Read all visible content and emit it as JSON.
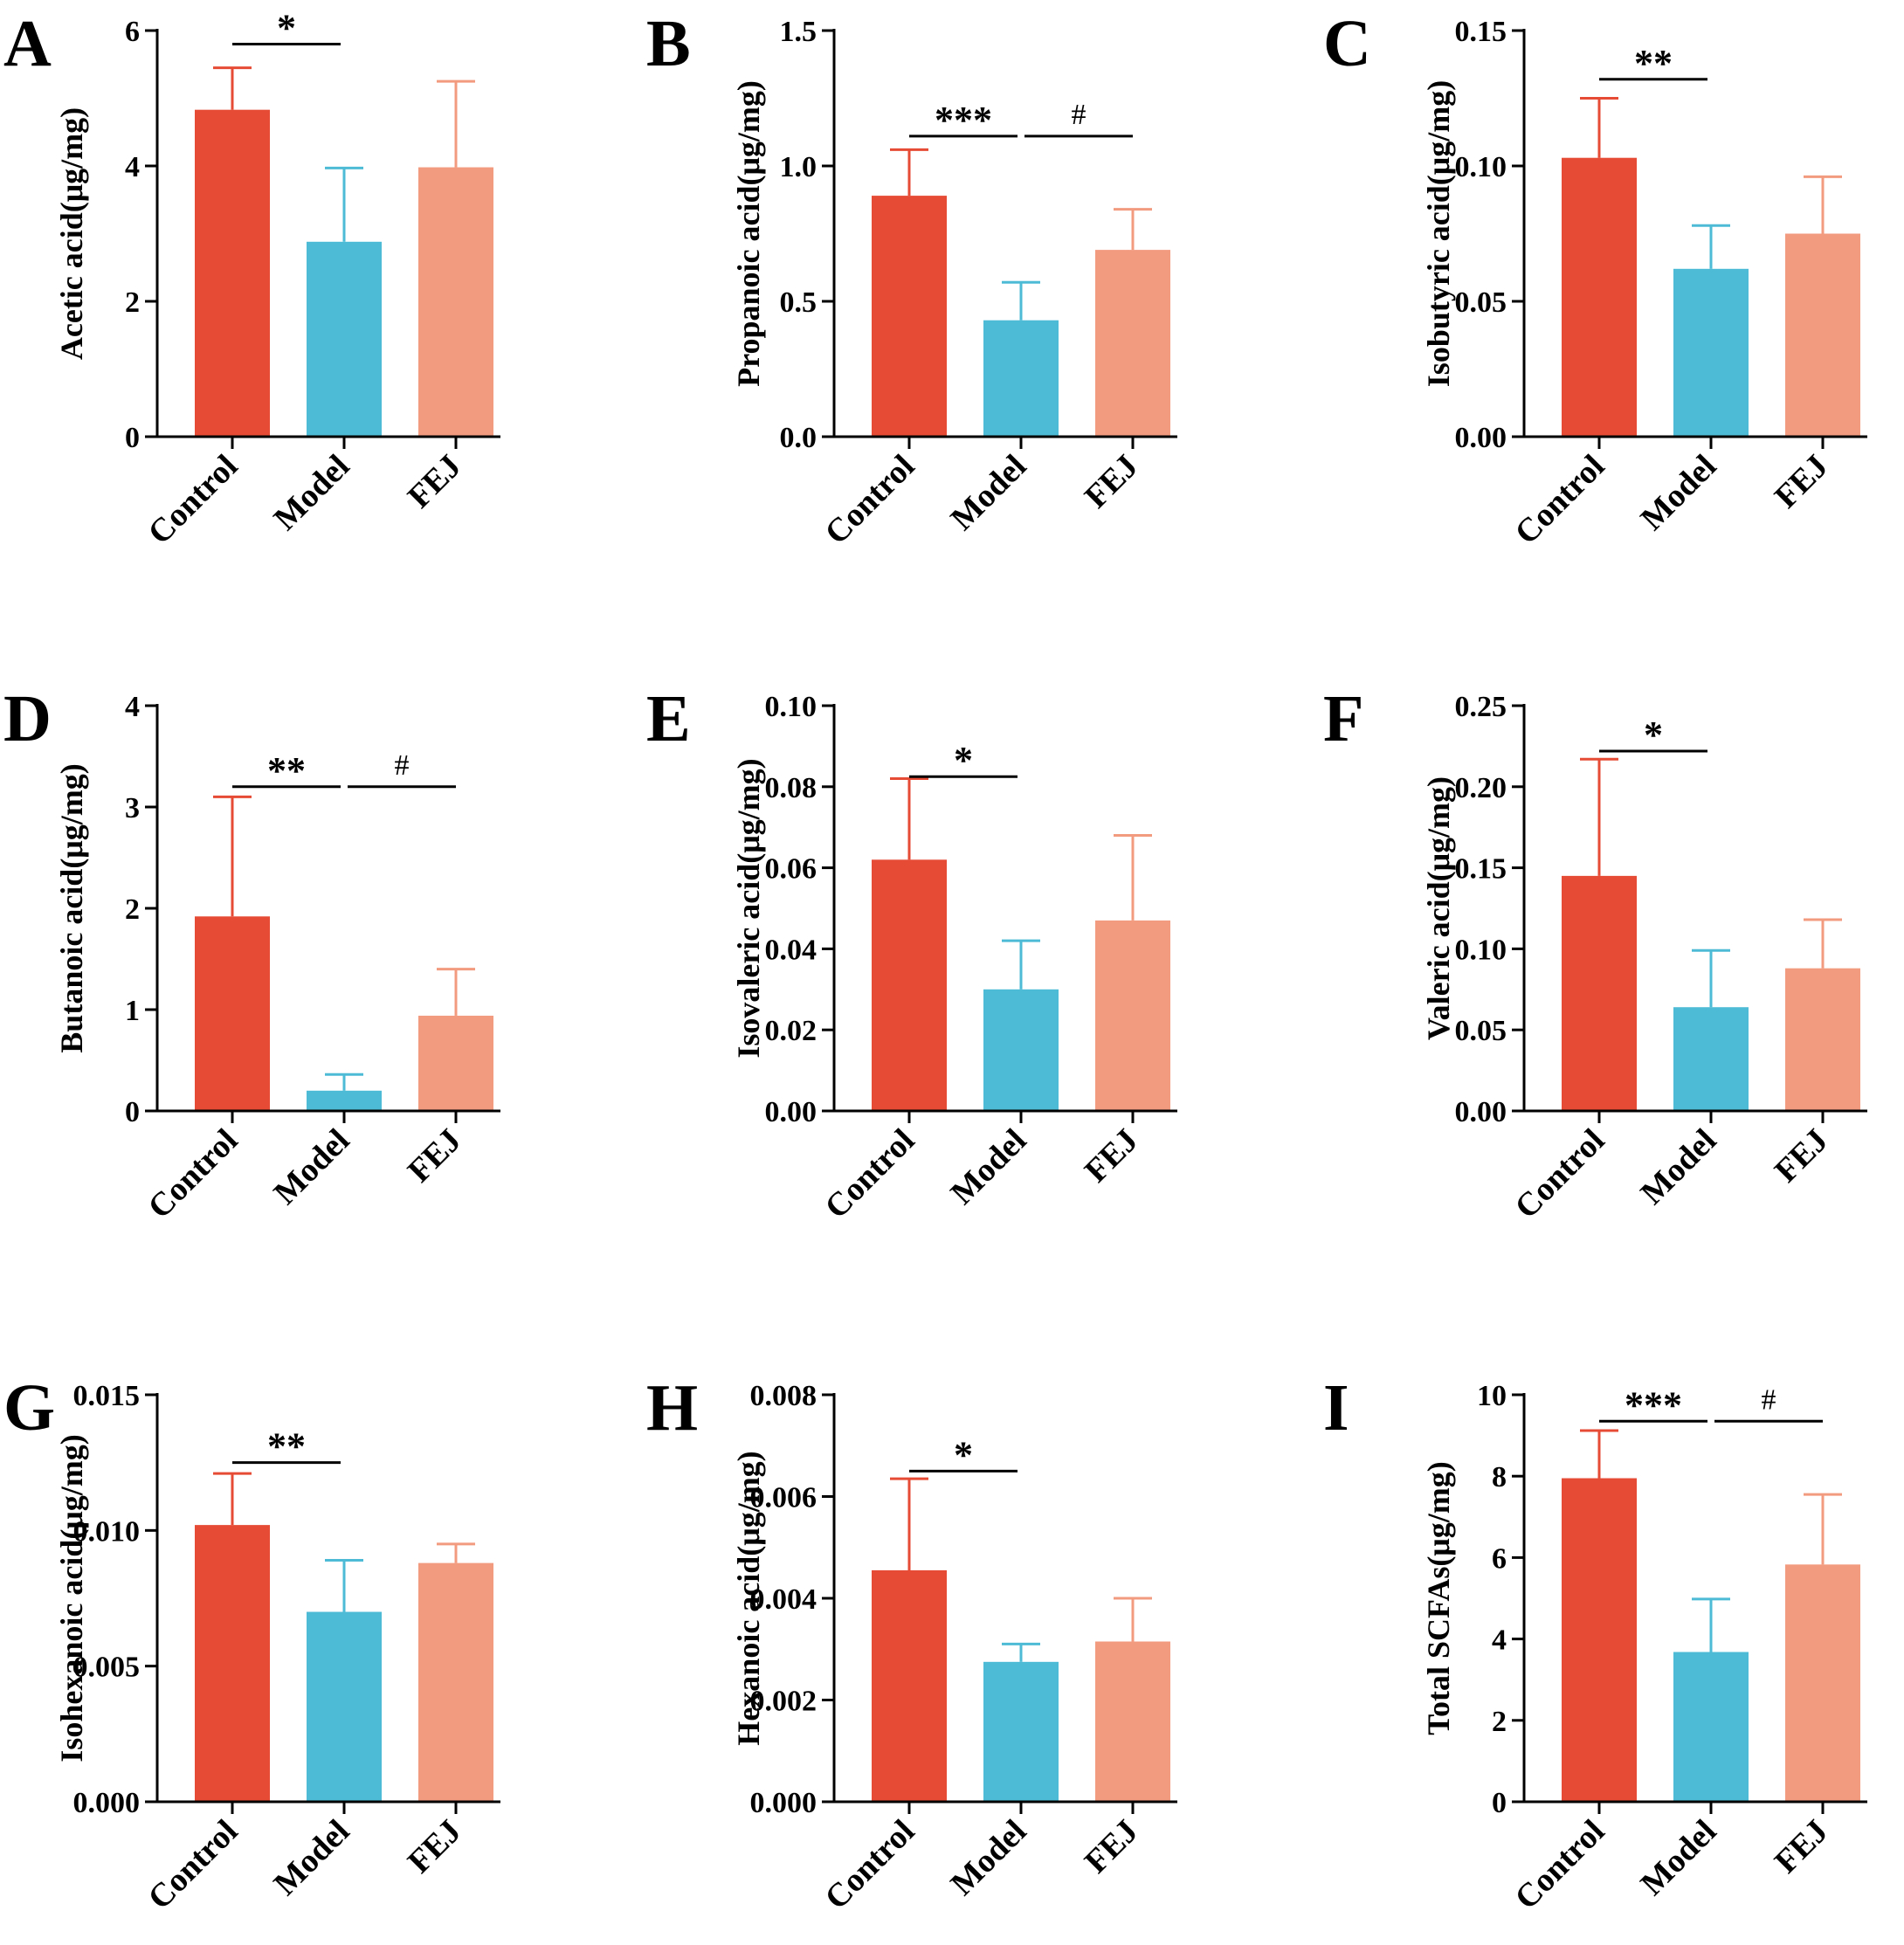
{
  "colors": {
    "control": "#E64B35",
    "model": "#4DBBD5",
    "fej": "#F39B7F",
    "axis": "#000000"
  },
  "chart_data": [
    {
      "type": "bar",
      "panel": "A",
      "title": "",
      "xlabel": "",
      "ylabel": "Acetic acid(μg/mg)",
      "categories": [
        "Control",
        "Model",
        "FEJ"
      ],
      "values": [
        4.83,
        2.88,
        3.98
      ],
      "errors": [
        0.62,
        1.09,
        1.27
      ],
      "ylim": [
        0,
        6
      ],
      "ticks": [
        0,
        2,
        4,
        6
      ],
      "tick_labels": [
        "0",
        "2",
        "4",
        "6"
      ],
      "significance": [
        {
          "from": 0,
          "to": 1,
          "label": "*",
          "y": 5.8
        }
      ]
    },
    {
      "type": "bar",
      "panel": "B",
      "title": "",
      "xlabel": "",
      "ylabel": "Propanoic acid(μg/mg)",
      "categories": [
        "Control",
        "Model",
        "FEJ"
      ],
      "values": [
        0.89,
        0.43,
        0.69
      ],
      "errors": [
        0.17,
        0.14,
        0.15
      ],
      "ylim": [
        0,
        1.5
      ],
      "ticks": [
        0,
        0.5,
        1.0,
        1.5
      ],
      "tick_labels": [
        "0.0",
        "0.5",
        "1.0",
        "1.5"
      ],
      "significance": [
        {
          "from": 0,
          "to": 1,
          "label": "***",
          "y": 1.11
        },
        {
          "from": 1,
          "to": 2,
          "label": "#",
          "y": 1.11
        }
      ]
    },
    {
      "type": "bar",
      "panel": "C",
      "title": "",
      "xlabel": "",
      "ylabel": "Isobutyric acid(μg/mg)",
      "categories": [
        "Control",
        "Model",
        "FEJ"
      ],
      "values": [
        0.103,
        0.062,
        0.075
      ],
      "errors": [
        0.022,
        0.016,
        0.021
      ],
      "ylim": [
        0,
        0.15
      ],
      "ticks": [
        0,
        0.05,
        0.1,
        0.15
      ],
      "tick_labels": [
        "0.00",
        "0.05",
        "0.10",
        "0.15"
      ],
      "significance": [
        {
          "from": 0,
          "to": 1,
          "label": "**",
          "y": 0.132
        }
      ]
    },
    {
      "type": "bar",
      "panel": "D",
      "title": "",
      "xlabel": "",
      "ylabel": "Butanoic acid(μg/mg)",
      "categories": [
        "Control",
        "Model",
        "FEJ"
      ],
      "values": [
        1.92,
        0.2,
        0.94
      ],
      "errors": [
        1.18,
        0.16,
        0.46
      ],
      "ylim": [
        0,
        4
      ],
      "ticks": [
        0,
        1,
        2,
        3,
        4
      ],
      "tick_labels": [
        "0",
        "1",
        "2",
        "3",
        "4"
      ],
      "significance": [
        {
          "from": 0,
          "to": 1,
          "label": "**",
          "y": 3.2
        },
        {
          "from": 1,
          "to": 2,
          "label": "#",
          "y": 3.2
        }
      ]
    },
    {
      "type": "bar",
      "panel": "E",
      "title": "",
      "xlabel": "",
      "ylabel": "Isovaleric acid(μg/mg)",
      "categories": [
        "Control",
        "Model",
        "FEJ"
      ],
      "values": [
        0.062,
        0.03,
        0.047
      ],
      "errors": [
        0.02,
        0.012,
        0.021
      ],
      "ylim": [
        0,
        0.1
      ],
      "ticks": [
        0,
        0.02,
        0.04,
        0.06,
        0.08,
        0.1
      ],
      "tick_labels": [
        "0.00",
        "0.02",
        "0.04",
        "0.06",
        "0.08",
        "0.10"
      ],
      "significance": [
        {
          "from": 0,
          "to": 1,
          "label": "*",
          "y": 0.0825
        }
      ]
    },
    {
      "type": "bar",
      "panel": "F",
      "title": "",
      "xlabel": "",
      "ylabel": "Valeric acid(μg/mg)",
      "categories": [
        "Control",
        "Model",
        "FEJ"
      ],
      "values": [
        0.145,
        0.064,
        0.088
      ],
      "errors": [
        0.072,
        0.035,
        0.03
      ],
      "ylim": [
        0,
        0.25
      ],
      "ticks": [
        0,
        0.05,
        0.1,
        0.15,
        0.2,
        0.25
      ],
      "tick_labels": [
        "0.00",
        "0.05",
        "0.10",
        "0.15",
        "0.20",
        "0.25"
      ],
      "significance": [
        {
          "from": 0,
          "to": 1,
          "label": "*",
          "y": 0.222
        }
      ]
    },
    {
      "type": "bar",
      "panel": "G",
      "title": "",
      "xlabel": "",
      "ylabel": "Isohexanoic acid(μg/mg)",
      "categories": [
        "Control",
        "Model",
        "FEJ"
      ],
      "values": [
        0.0102,
        0.007,
        0.0088
      ],
      "errors": [
        0.0019,
        0.0019,
        0.0007
      ],
      "ylim": [
        0,
        0.015
      ],
      "ticks": [
        0,
        0.005,
        0.01,
        0.015
      ],
      "tick_labels": [
        "0.000",
        "0.005",
        "0.010",
        "0.015"
      ],
      "significance": [
        {
          "from": 0,
          "to": 1,
          "label": "**",
          "y": 0.0125
        }
      ]
    },
    {
      "type": "bar",
      "panel": "H",
      "title": "",
      "xlabel": "",
      "ylabel": "Hexanoic acid(μg/mg)",
      "categories": [
        "Control",
        "Model",
        "FEJ"
      ],
      "values": [
        0.00455,
        0.00275,
        0.00315
      ],
      "errors": [
        0.0018,
        0.00035,
        0.00085
      ],
      "ylim": [
        0,
        0.008
      ],
      "ticks": [
        0,
        0.002,
        0.004,
        0.006,
        0.008
      ],
      "tick_labels": [
        "0.000",
        "0.002",
        "0.004",
        "0.006",
        "0.008"
      ],
      "significance": [
        {
          "from": 0,
          "to": 1,
          "label": "*",
          "y": 0.0065
        }
      ]
    },
    {
      "type": "bar",
      "panel": "I",
      "title": "",
      "xlabel": "",
      "ylabel": "Total SCFAs(μg/mg)",
      "categories": [
        "Control",
        "Model",
        "FEJ"
      ],
      "values": [
        7.95,
        3.68,
        5.83
      ],
      "errors": [
        1.17,
        1.3,
        1.72
      ],
      "ylim": [
        0,
        10
      ],
      "ticks": [
        0,
        2,
        4,
        6,
        8,
        10
      ],
      "tick_labels": [
        "0",
        "2",
        "4",
        "6",
        "8",
        "10"
      ],
      "significance": [
        {
          "from": 0,
          "to": 1,
          "label": "***",
          "y": 9.35
        },
        {
          "from": 1,
          "to": 2,
          "label": "#",
          "y": 9.35
        }
      ]
    }
  ]
}
